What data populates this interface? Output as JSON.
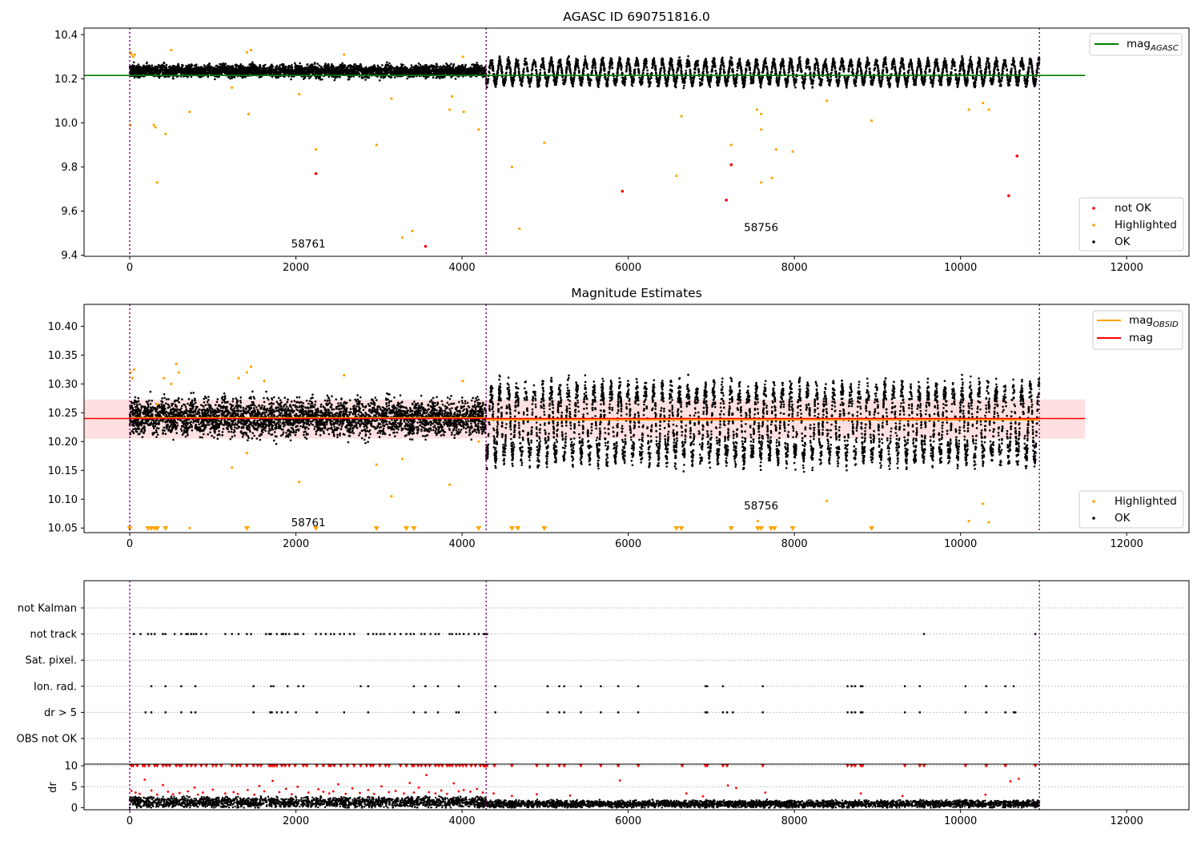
{
  "chart_data": [
    {
      "type": "scatter",
      "title": "AGASC ID 690751816.0",
      "xlim": [
        -550,
        12750
      ],
      "ylim": [
        9.395,
        10.43
      ],
      "xticks": [
        0,
        2000,
        4000,
        6000,
        8000,
        10000,
        12000
      ],
      "xtick_labels": [
        "0",
        "2000",
        "4000",
        "6000",
        "8000",
        "10000",
        "12000"
      ],
      "yticks": [
        9.4,
        9.6,
        9.8,
        10.0,
        10.2,
        10.4
      ],
      "ytick_labels": [
        "9.4",
        "9.6",
        "9.8",
        "10.0",
        "10.2",
        "10.4"
      ],
      "vlines": [
        0,
        4290,
        10950
      ],
      "hline": {
        "name": "mag",
        "sub": "AGASC",
        "y": 10.215,
        "x": [
          -550,
          11500
        ],
        "color": "#008000"
      },
      "annotations": [
        {
          "text": "58761",
          "x": 2150,
          "y": 9.435
        },
        {
          "text": "58756",
          "x": 7600,
          "y": 9.51
        }
      ],
      "legend_top": [
        {
          "name": "mag",
          "sub": "AGASC",
          "color": "#008000",
          "kind": "line"
        }
      ],
      "legend_bottom": [
        {
          "name": "not OK",
          "color": "#ff0000",
          "kind": "dot"
        },
        {
          "name": "Highlighted",
          "color": "#ffa500",
          "kind": "dot"
        },
        {
          "name": "OK",
          "color": "#000000",
          "kind": "dot"
        }
      ],
      "ok_series": {
        "name": "OK",
        "segments": [
          {
            "x": [
              0,
              4290
            ],
            "base": 10.235,
            "spread": 0.04,
            "amp": 0.005,
            "period": 180
          },
          {
            "x": [
              4290,
              10950
            ],
            "base": 10.23,
            "spread": 0.028,
            "amp": 0.05,
            "period": 103
          }
        ]
      },
      "highlighted": [
        [
          10,
          10.32
        ],
        [
          20,
          10.31
        ],
        [
          40,
          10.3
        ],
        [
          60,
          10.31
        ],
        [
          8,
          9.99
        ],
        [
          290,
          9.99
        ],
        [
          310,
          9.98
        ],
        [
          330,
          9.73
        ],
        [
          430,
          9.95
        ],
        [
          720,
          10.05
        ],
        [
          1230,
          10.16
        ],
        [
          1430,
          10.04
        ],
        [
          1410,
          10.32
        ],
        [
          1460,
          10.33
        ],
        [
          2040,
          10.13
        ],
        [
          2240,
          9.88
        ],
        [
          2970,
          9.9
        ],
        [
          3150,
          10.11
        ],
        [
          3280,
          9.48
        ],
        [
          3400,
          9.51
        ],
        [
          3850,
          10.06
        ],
        [
          3880,
          10.12
        ],
        [
          4020,
          10.05
        ],
        [
          4200,
          9.97
        ],
        [
          4600,
          9.8
        ],
        [
          4690,
          9.52
        ],
        [
          4990,
          9.91
        ],
        [
          6580,
          9.76
        ],
        [
          6640,
          10.03
        ],
        [
          7240,
          9.9
        ],
        [
          7550,
          10.06
        ],
        [
          7600,
          10.04
        ],
        [
          7600,
          9.97
        ],
        [
          7600,
          9.73
        ],
        [
          7730,
          9.75
        ],
        [
          7780,
          9.88
        ],
        [
          7980,
          9.87
        ],
        [
          8390,
          10.1
        ],
        [
          8930,
          10.01
        ],
        [
          10100,
          10.06
        ],
        [
          10270,
          10.09
        ],
        [
          10340,
          10.06
        ],
        [
          500,
          10.33
        ],
        [
          2580,
          10.31
        ],
        [
          4010,
          10.3
        ]
      ],
      "not_ok": [
        [
          2240,
          9.77
        ],
        [
          3560,
          9.44
        ],
        [
          5930,
          9.69
        ],
        [
          7180,
          9.65
        ],
        [
          7240,
          9.81
        ],
        [
          10580,
          9.67
        ],
        [
          10680,
          9.85
        ]
      ]
    },
    {
      "type": "scatter",
      "title": "Magnitude Estimates",
      "xlim": [
        -550,
        12750
      ],
      "ylim": [
        10.042,
        10.438
      ],
      "xticks": [
        0,
        2000,
        4000,
        6000,
        8000,
        10000,
        12000
      ],
      "xtick_labels": [
        "0",
        "2000",
        "4000",
        "6000",
        "8000",
        "10000",
        "12000"
      ],
      "yticks": [
        10.05,
        10.1,
        10.15,
        10.2,
        10.25,
        10.3,
        10.35,
        10.4
      ],
      "ytick_labels": [
        "10.05",
        "10.10",
        "10.15",
        "10.20",
        "10.25",
        "10.30",
        "10.35",
        "10.40"
      ],
      "vlines": [
        0,
        4290,
        10950
      ],
      "mag_line": {
        "name": "mag",
        "y": 10.24,
        "x": [
          -550,
          11500
        ],
        "band": [
          10.205,
          10.273
        ],
        "color": "#ff0000"
      },
      "obsid_steps": [
        {
          "x": [
            0,
            4290
          ],
          "y": 10.241
        },
        {
          "x": [
            4290,
            10950
          ],
          "y": 10.238
        }
      ],
      "annotations": [
        {
          "text": "58761",
          "x": 2150,
          "y": 10.053
        },
        {
          "text": "58756",
          "x": 7600,
          "y": 10.082
        }
      ],
      "legend_top": [
        {
          "name": "mag",
          "sub": "OBSID",
          "color": "#ffa500",
          "kind": "line"
        },
        {
          "name": "mag",
          "color": "#ff0000",
          "kind": "line"
        }
      ],
      "legend_bottom": [
        {
          "name": "Highlighted",
          "color": "#ffa500",
          "kind": "dot"
        },
        {
          "name": "OK",
          "color": "#000000",
          "kind": "dot"
        }
      ],
      "ok_series": {
        "name": "OK",
        "segments": [
          {
            "x": [
              0,
              4290
            ],
            "base": 10.242,
            "spread": 0.045,
            "amp": 0.006,
            "period": 180
          },
          {
            "x": [
              4290,
              10950
            ],
            "base": 10.232,
            "spread": 0.03,
            "amp": 0.06,
            "period": 103
          }
        ]
      },
      "highlighted": [
        [
          10,
          10.32
        ],
        [
          30,
          10.31
        ],
        [
          50,
          10.325
        ],
        [
          330,
          10.265
        ],
        [
          410,
          10.31
        ],
        [
          500,
          10.3
        ],
        [
          560,
          10.335
        ],
        [
          590,
          10.32
        ],
        [
          1310,
          10.31
        ],
        [
          1410,
          10.32
        ],
        [
          1460,
          10.33
        ],
        [
          1620,
          10.305
        ],
        [
          1410,
          10.18
        ],
        [
          1230,
          10.155
        ],
        [
          2040,
          10.13
        ],
        [
          2580,
          10.315
        ],
        [
          2970,
          10.16
        ],
        [
          3150,
          10.105
        ],
        [
          3280,
          10.17
        ],
        [
          3850,
          10.125
        ],
        [
          4010,
          10.305
        ],
        [
          4200,
          10.2
        ],
        [
          720,
          10.05
        ],
        [
          7560,
          10.062
        ],
        [
          8390,
          10.097
        ],
        [
          10100,
          10.062
        ],
        [
          10270,
          10.092
        ],
        [
          10340,
          10.06
        ]
      ],
      "markers": [
        0,
        220,
        260,
        300,
        330,
        430,
        1410,
        2240,
        2970,
        3330,
        3420,
        4200,
        4600,
        4670,
        4990,
        6580,
        6640,
        7240,
        7560,
        7600,
        7720,
        7760,
        7980,
        8930
      ]
    },
    {
      "type": "scatter",
      "xlim": [
        -550,
        12750
      ],
      "categories": [
        "not Kalman",
        "not track",
        "Sat. pixel.",
        "Ion. rad.",
        "dr > 5",
        "OBS not OK"
      ],
      "vlines": [
        0,
        4290,
        10950
      ],
      "flags": {
        "not track": [
          50,
          130,
          220,
          260,
          300,
          400,
          430,
          540,
          620,
          680,
          700,
          740,
          770,
          800,
          860,
          920,
          1150,
          1230,
          1310,
          1410,
          1460,
          1640,
          1680,
          1700,
          1770,
          1830,
          1850,
          1880,
          1920,
          1990,
          2020,
          2090,
          2240,
          2300,
          2360,
          2420,
          2460,
          2530,
          2580,
          2650,
          2700,
          2870,
          2930,
          2970,
          3020,
          3060,
          3130,
          3190,
          3260,
          3330,
          3380,
          3420,
          3510,
          3550,
          3620,
          3680,
          3720,
          3850,
          3880,
          3930,
          3970,
          4020,
          4080,
          4150,
          4200,
          4260,
          4280,
          4300,
          9560,
          10900
        ],
        "Ion. rad.": [
          260,
          430,
          620,
          790,
          1490,
          1700,
          1730,
          1900,
          2030,
          2090,
          2780,
          2870,
          3420,
          3560,
          3710,
          3960,
          4400,
          5030,
          5170,
          5230,
          5430,
          5670,
          5880,
          6120,
          6930,
          6950,
          7140,
          7620,
          8640,
          8690,
          8730,
          8800,
          8820,
          9330,
          9510,
          10060,
          10310,
          10540,
          10640
        ],
        "dr > 5": [
          190,
          260,
          430,
          620,
          740,
          790,
          1490,
          1690,
          1710,
          1770,
          1830,
          1900,
          2000,
          2250,
          2580,
          2870,
          3420,
          3560,
          3710,
          3930,
          3960,
          4400,
          5030,
          5170,
          5230,
          5430,
          5670,
          5880,
          6120,
          6930,
          6950,
          7140,
          7190,
          7260,
          7620,
          8640,
          8690,
          8730,
          8800,
          8820,
          9330,
          9510,
          10060,
          10310,
          10540,
          10640,
          10660
        ]
      }
    },
    {
      "type": "scatter",
      "xlim": [
        -550,
        12750
      ],
      "ylim": [
        -0.5,
        10.4
      ],
      "ylabel": "dr",
      "yticks": [
        0,
        5,
        10
      ],
      "ytick_labels": [
        "0",
        "5",
        "10"
      ],
      "xticks": [
        0,
        2000,
        4000,
        6000,
        8000,
        10000,
        12000
      ],
      "xtick_labels": [
        "0",
        "2000",
        "4000",
        "6000",
        "8000",
        "10000",
        "12000"
      ],
      "vlines": [
        0,
        4290,
        10950
      ],
      "ok_series": {
        "name": "OK",
        "segments": [
          {
            "x": [
              0,
              4290
            ],
            "base": 1.3,
            "spread": 1.0
          },
          {
            "x": [
              4290,
              10950
            ],
            "base": 0.9,
            "spread": 0.7
          }
        ]
      },
      "red_points": [
        [
          20,
          4.0
        ],
        [
          70,
          3.6
        ],
        [
          120,
          3.3
        ],
        [
          180,
          6.7
        ],
        [
          260,
          4.1
        ],
        [
          330,
          3.1
        ],
        [
          400,
          5.4
        ],
        [
          460,
          3.8
        ],
        [
          520,
          3.2
        ],
        [
          600,
          3.5
        ],
        [
          700,
          3.9
        ],
        [
          780,
          4.8
        ],
        [
          820,
          3.1
        ],
        [
          880,
          3.6
        ],
        [
          1000,
          4.3
        ],
        [
          1150,
          3.4
        ],
        [
          1250,
          3.7
        ],
        [
          1300,
          3.3
        ],
        [
          1420,
          4.2
        ],
        [
          1500,
          3.1
        ],
        [
          1560,
          5.2
        ],
        [
          1620,
          3.9
        ],
        [
          1720,
          6.4
        ],
        [
          1800,
          3.7
        ],
        [
          1880,
          4.5
        ],
        [
          1950,
          3.2
        ],
        [
          2020,
          5.0
        ],
        [
          2150,
          3.6
        ],
        [
          2270,
          4.4
        ],
        [
          2330,
          3.8
        ],
        [
          2400,
          3.4
        ],
        [
          2450,
          3.9
        ],
        [
          2510,
          5.6
        ],
        [
          2600,
          3.3
        ],
        [
          2680,
          4.6
        ],
        [
          2770,
          3.5
        ],
        [
          2870,
          4.2
        ],
        [
          2940,
          3.3
        ],
        [
          3030,
          5.1
        ],
        [
          3120,
          3.7
        ],
        [
          3200,
          4.0
        ],
        [
          3300,
          3.4
        ],
        [
          3370,
          5.9
        ],
        [
          3420,
          3.6
        ],
        [
          3480,
          4.8
        ],
        [
          3570,
          7.8
        ],
        [
          3600,
          3.7
        ],
        [
          3680,
          3.4
        ],
        [
          3750,
          4.1
        ],
        [
          3820,
          3.3
        ],
        [
          3900,
          5.8
        ],
        [
          3960,
          3.9
        ],
        [
          4020,
          4.2
        ],
        [
          4100,
          3.8
        ],
        [
          4180,
          4.5
        ],
        [
          4250,
          3.6
        ],
        [
          4380,
          3.4
        ],
        [
          4600,
          2.8
        ],
        [
          4900,
          3.2
        ],
        [
          5300,
          2.9
        ],
        [
          5900,
          6.5
        ],
        [
          6700,
          3.4
        ],
        [
          6900,
          2.7
        ],
        [
          7200,
          5.3
        ],
        [
          7300,
          4.7
        ],
        [
          7650,
          3.6
        ],
        [
          8800,
          3.4
        ],
        [
          9300,
          2.8
        ],
        [
          10300,
          3.1
        ],
        [
          10600,
          6.3
        ],
        [
          10700,
          6.9
        ]
      ],
      "red_at_ten": [
        20,
        40,
        90,
        160,
        180,
        230,
        300,
        330,
        400,
        440,
        480,
        560,
        600,
        620,
        690,
        740,
        790,
        860,
        920,
        1000,
        1040,
        1100,
        1230,
        1290,
        1330,
        1410,
        1490,
        1540,
        1580,
        1680,
        1700,
        1720,
        1740,
        1770,
        1830,
        1870,
        1920,
        1990,
        2090,
        2130,
        2250,
        2330,
        2400,
        2420,
        2460,
        2540,
        2620,
        2700,
        2780,
        2850,
        2900,
        2930,
        3010,
        3080,
        3120,
        3260,
        3330,
        3400,
        3420,
        3470,
        3510,
        3560,
        3610,
        3680,
        3720,
        3760,
        3820,
        3850,
        3880,
        3930,
        3970,
        4010,
        4050,
        4110,
        4160,
        4220,
        4260,
        4270,
        4280,
        4290,
        4300,
        4390,
        4600,
        4900,
        5030,
        5170,
        5230,
        5430,
        5670,
        5880,
        6120,
        6650,
        6930,
        6950,
        7140,
        7190,
        7620,
        8640,
        8690,
        8730,
        8800,
        8820,
        9330,
        9510,
        9560,
        10060,
        10310,
        10540,
        10900
      ]
    }
  ]
}
